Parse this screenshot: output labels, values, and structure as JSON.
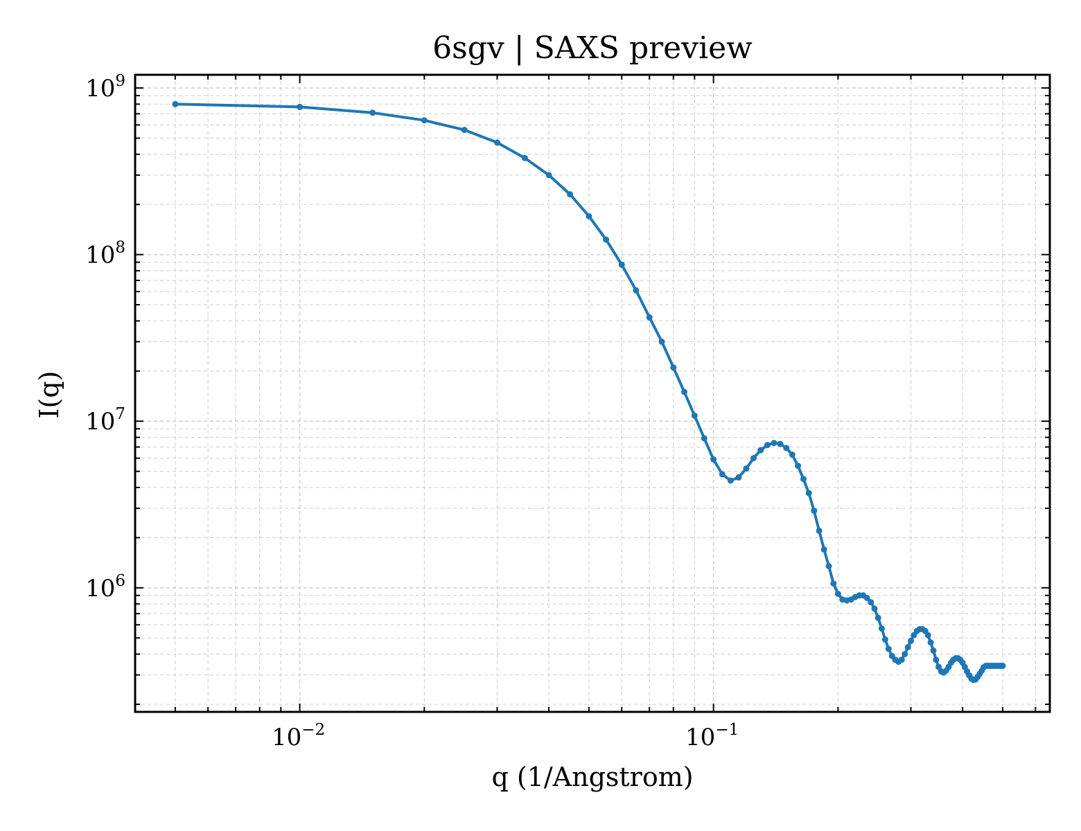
{
  "chart_data": {
    "type": "line",
    "title": "6sgv | SAXS preview",
    "xlabel": "q (1/Angstrom)",
    "ylabel": "I(q)",
    "xscale": "log",
    "yscale": "log",
    "xlim": [
      0.004,
      0.65
    ],
    "ylim": [
      180000,
      1200000000
    ],
    "grid": true,
    "legend": "none",
    "color": "#1f77b4",
    "x_ticks": [
      {
        "base": "10",
        "exp": "−2",
        "value": 0.01
      },
      {
        "base": "10",
        "exp": "−1",
        "value": 0.1
      }
    ],
    "y_ticks": [
      {
        "base": "10",
        "exp": "6",
        "value": 1000000
      },
      {
        "base": "10",
        "exp": "7",
        "value": 10000000
      },
      {
        "base": "10",
        "exp": "8",
        "value": 100000000
      },
      {
        "base": "10",
        "exp": "9",
        "value": 1000000000
      }
    ],
    "series": [
      {
        "x": [
          0.005,
          0.01,
          0.015,
          0.02,
          0.025,
          0.03,
          0.035,
          0.04,
          0.045,
          0.05,
          0.055,
          0.06,
          0.065,
          0.07,
          0.075,
          0.08,
          0.085,
          0.09,
          0.095,
          0.1,
          0.105,
          0.11,
          0.115,
          0.12,
          0.125,
          0.13,
          0.135,
          0.14,
          0.145,
          0.15,
          0.155,
          0.16,
          0.165,
          0.17,
          0.175,
          0.18,
          0.185,
          0.19,
          0.195,
          0.2,
          0.205,
          0.21,
          0.215,
          0.22,
          0.225,
          0.23,
          0.235,
          0.24,
          0.245,
          0.25,
          0.255,
          0.26,
          0.265,
          0.27,
          0.275,
          0.28,
          0.285,
          0.29,
          0.295,
          0.3,
          0.305,
          0.31,
          0.315,
          0.32,
          0.325,
          0.33,
          0.335,
          0.34,
          0.345,
          0.35,
          0.355,
          0.36,
          0.365,
          0.37,
          0.375,
          0.38,
          0.385,
          0.39,
          0.395,
          0.4,
          0.405,
          0.41,
          0.415,
          0.42,
          0.425,
          0.43,
          0.435,
          0.44,
          0.445,
          0.45,
          0.455,
          0.46,
          0.465,
          0.47,
          0.475,
          0.48,
          0.485,
          0.49,
          0.495,
          0.5
        ],
        "y": [
          800000000,
          770000000,
          710000000,
          640000000,
          560000000,
          470000000,
          380000000,
          300000000,
          230000000,
          170000000,
          123000000,
          87000000,
          61000000,
          42000000,
          30000000,
          21000000,
          15000000,
          10800000,
          7900000,
          5900000,
          4800000,
          4400000,
          4600000,
          5200000,
          6000000,
          6700000,
          7200000,
          7400000,
          7300000,
          6900000,
          6300000,
          5400000,
          4500000,
          3700000,
          2900000,
          2200000,
          1700000,
          1350000,
          1060000,
          920000,
          850000,
          840000,
          850000,
          880000,
          900000,
          900000,
          870000,
          820000,
          750000,
          660000,
          570000,
          490000,
          430000,
          390000,
          370000,
          360000,
          370000,
          400000,
          440000,
          480000,
          520000,
          550000,
          565000,
          565000,
          550000,
          520000,
          470000,
          420000,
          370000,
          335000,
          315000,
          310000,
          318000,
          335000,
          355000,
          370000,
          378000,
          378000,
          370000,
          355000,
          335000,
          315000,
          298000,
          285000,
          280000,
          282000,
          292000,
          305000,
          318000,
          333000,
          340000,
          340000,
          340000,
          340000,
          340000,
          340000,
          340000,
          340000,
          340000,
          340000
        ]
      }
    ]
  }
}
